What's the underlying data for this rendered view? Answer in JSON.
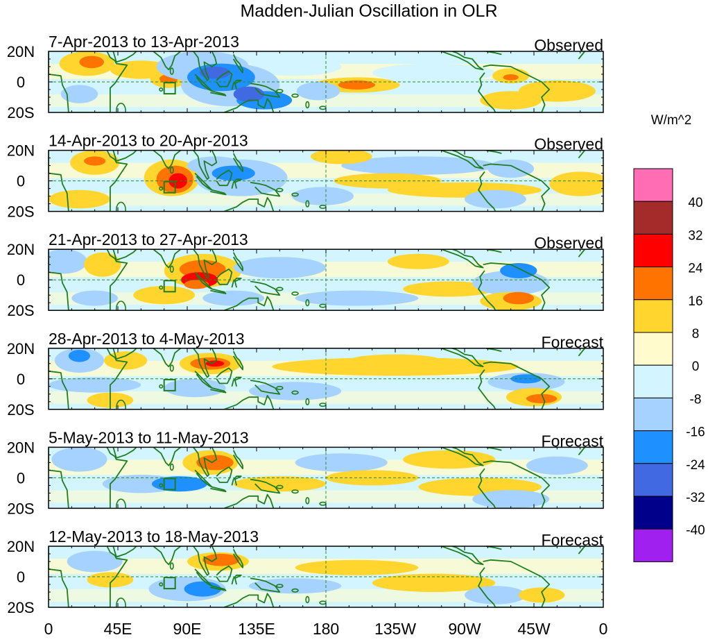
{
  "title": "Madden-Julian Oscillation in OLR",
  "units": "W/m^2",
  "panels": [
    {
      "date_range": "7-Apr-2013 to 13-Apr-2013",
      "kind": "Observed"
    },
    {
      "date_range": "14-Apr-2013 to 20-Apr-2013",
      "kind": "Observed"
    },
    {
      "date_range": "21-Apr-2013 to 27-Apr-2013",
      "kind": "Observed"
    },
    {
      "date_range": "28-Apr-2013 to 4-May-2013",
      "kind": "Forecast"
    },
    {
      "date_range": "5-May-2013 to 11-May-2013",
      "kind": "Forecast"
    },
    {
      "date_range": "12-May-2013 to 18-May-2013",
      "kind": "Forecast"
    }
  ],
  "lat_labels": [
    "20N",
    "0",
    "20S"
  ],
  "lon_labels": [
    "0",
    "45E",
    "90E",
    "135E",
    "180",
    "135W",
    "90W",
    "45W",
    "0"
  ],
  "colorbar": {
    "levels": [
      "40",
      "32",
      "24",
      "16",
      "8",
      "0",
      "-8",
      "-16",
      "-24",
      "-32",
      "-40"
    ],
    "colors": [
      "#ff6eb4",
      "#a52a2a",
      "#ff0000",
      "#ff7300",
      "#ffd52e",
      "#fffbcc",
      "#d2f5ff",
      "#a5d2ff",
      "#1e90ff",
      "#4169e1",
      "#00008b",
      "#a020f0"
    ]
  },
  "map_colors": {
    "coast": "#1e7e1e",
    "dash": "#2a8a2a"
  }
}
